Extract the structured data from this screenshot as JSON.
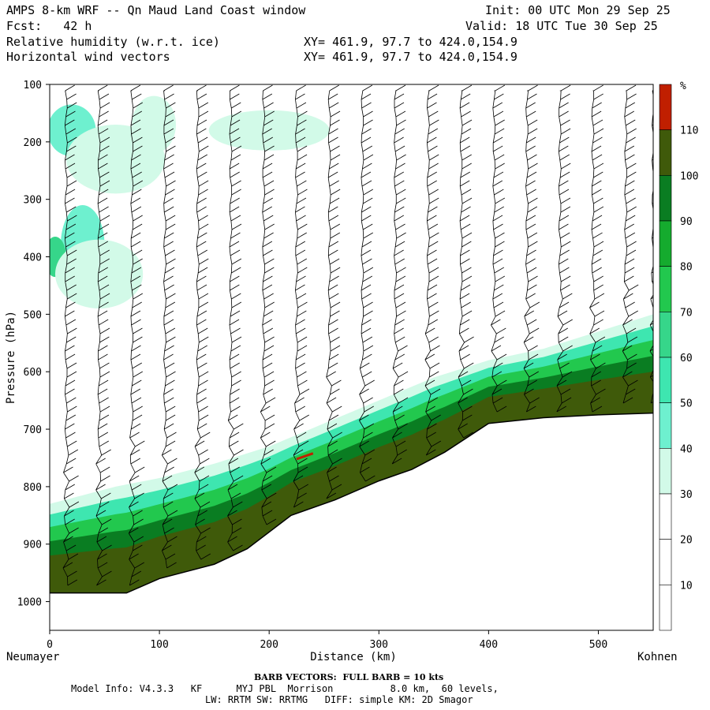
{
  "header": {
    "title": "AMPS 8-km WRF -- Qn Maud Land Coast window",
    "init": "Init: 00 UTC Mon 29 Sep 25",
    "fcst": "Fcst:   42 h",
    "valid": "Valid: 18 UTC Tue 30 Sep 25",
    "field1": "Relative humidity (w.r.t. ice)",
    "xy1": "XY= 461.9, 97.7 to 424.0,154.9",
    "field2": "Horizontal wind vectors",
    "xy2": "XY= 461.9, 97.7 to 424.0,154.9"
  },
  "footer": {
    "barb_note": "BARB VECTORS:  FULL BARB = 10 kts",
    "model_info": "Model Info: V4.3.3   KF      MYJ PBL  Morrison          8.0 km,  60 levels,",
    "model_info2": "LW: RRTM SW: RRTMG   DIFF: simple KM: 2D Smagor"
  },
  "chart_data": {
    "type": "cross-section",
    "title": "Relative humidity (w.r.t. ice) and horizontal wind vectors",
    "xlabel": "Distance (km)",
    "ylabel": "Pressure (hPa)",
    "xlim": [
      0,
      550
    ],
    "ylim": [
      1050,
      100
    ],
    "x_ticks": [
      0,
      100,
      200,
      300,
      400,
      500
    ],
    "y_ticks": [
      100,
      200,
      300,
      400,
      500,
      600,
      700,
      800,
      900,
      1000
    ],
    "x_start_label": "Neumayer",
    "x_end_label": "Kohnen",
    "colorbar": {
      "unit": "%",
      "levels": [
        10,
        20,
        30,
        40,
        50,
        60,
        70,
        80,
        90,
        100,
        110
      ],
      "colors": [
        "#ffffff",
        "#ffffff",
        "#ffffff",
        "#d2fae8",
        "#6ef0cf",
        "#3ee6b0",
        "#36d68a",
        "#22c84e",
        "#15ab2e",
        "#0a7d22",
        "#3f5a0a",
        "#c01f00"
      ]
    },
    "terrain_pressure": [
      [
        0,
        985
      ],
      [
        70,
        985
      ],
      [
        100,
        960
      ],
      [
        150,
        935
      ],
      [
        180,
        908
      ],
      [
        220,
        850
      ],
      [
        260,
        823
      ],
      [
        300,
        790
      ],
      [
        330,
        770
      ],
      [
        360,
        740
      ],
      [
        400,
        690
      ],
      [
        450,
        680
      ],
      [
        500,
        675
      ],
      [
        550,
        672
      ]
    ],
    "moist_top_pressure": [
      [
        0,
        830
      ],
      [
        60,
        800
      ],
      [
        100,
        785
      ],
      [
        150,
        760
      ],
      [
        200,
        730
      ],
      [
        250,
        690
      ],
      [
        300,
        650
      ],
      [
        350,
        610
      ],
      [
        400,
        580
      ],
      [
        450,
        560
      ],
      [
        500,
        530
      ],
      [
        550,
        500
      ]
    ],
    "barb_columns_km": [
      15,
      45,
      75,
      105,
      135,
      165,
      195,
      225,
      255,
      285,
      315,
      345,
      375,
      405,
      435,
      465,
      495,
      525,
      550
    ]
  }
}
